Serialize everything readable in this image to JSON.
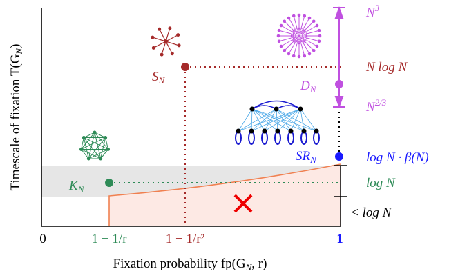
{
  "axes": {
    "y_label": {
      "text": "Timescale of fixation T(G",
      "sub": "N",
      "end": ")"
    },
    "x_label": {
      "text": "Fixation probability fp(G",
      "sub": "N",
      "end": ", r)"
    },
    "x_ticks": [
      "0",
      "1 − 1/r",
      "1 − 1/r²",
      "1"
    ]
  },
  "points": [
    {
      "base": "K",
      "sub": "N"
    },
    {
      "base": "S",
      "sub": "N"
    },
    {
      "base": "D",
      "sub": "N"
    },
    {
      "base": "SR",
      "sub": "N"
    }
  ],
  "right_labels": [
    {
      "base": "N",
      "sup": "3"
    },
    {
      "base": "N log N"
    },
    {
      "base": "N",
      "sup": "2/3"
    },
    {
      "base": "log N · β(N)"
    },
    {
      "base": "log N"
    },
    {
      "base": "< log N"
    }
  ]
}
